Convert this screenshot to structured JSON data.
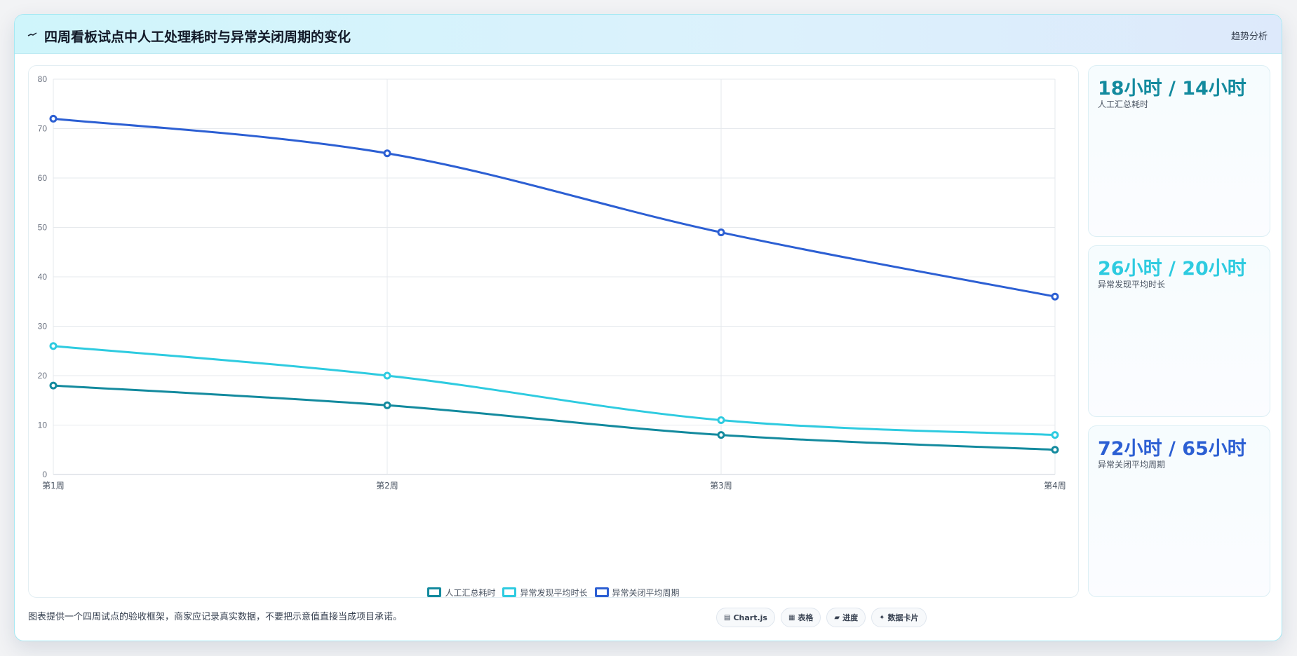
{
  "header": {
    "title": "四周看板试点中人工处理耗时与异常关闭周期的变化",
    "link": "趋势分析"
  },
  "colors": {
    "manual": "#138a9e",
    "discover": "#2ecbe0",
    "close": "#2c5fd3"
  },
  "chart_data": {
    "type": "line",
    "title": "",
    "xlabel": "",
    "ylabel": "",
    "categories": [
      "第1周",
      "第2周",
      "第3周",
      "第4周"
    ],
    "ylim": [
      0,
      80
    ],
    "yticks": [
      0,
      10,
      20,
      30,
      40,
      50,
      60,
      70,
      80
    ],
    "grid": true,
    "legend": "bottom",
    "series": [
      {
        "name": "人工汇总耗时",
        "values": [
          18,
          14,
          8,
          5
        ]
      },
      {
        "name": "异常发现平均时长",
        "values": [
          26,
          20,
          11,
          8
        ]
      },
      {
        "name": "异常关闭平均周期",
        "values": [
          72,
          65,
          49,
          36
        ]
      }
    ]
  },
  "stats": [
    {
      "value": "18小时 / 14小时",
      "label": "人工汇总耗时"
    },
    {
      "value": "26小时 / 20小时",
      "label": "异常发现平均时长"
    },
    {
      "value": "72小时 / 65小时",
      "label": "异常关闭平均周期"
    }
  ],
  "footnote": "图表提供一个四周试点的验收框架，商家应记录真实数据，不要把示意值直接当成项目承诺。",
  "chips": [
    {
      "icon": "▤",
      "label": "Chart.js"
    },
    {
      "icon": "▦",
      "label": "表格"
    },
    {
      "icon": "▰",
      "label": "进度"
    },
    {
      "icon": "✦",
      "label": "数据卡片"
    }
  ]
}
